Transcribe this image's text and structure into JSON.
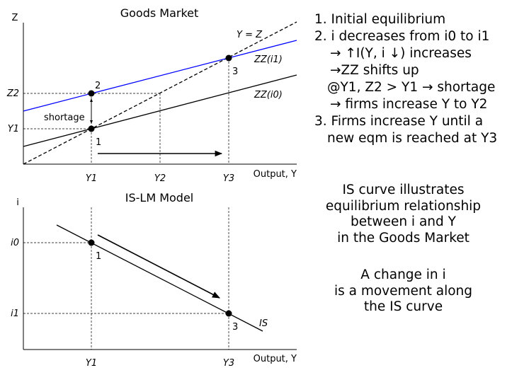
{
  "top": {
    "title": "Goods Market",
    "y_axis_label": "Z",
    "x_axis_label": "Output, Y",
    "x_ticks": [
      "Y1",
      "Y2",
      "Y3"
    ],
    "y_ticks": [
      "Z2",
      "Y1"
    ],
    "labels": {
      "y_equals_z": "Y = Z",
      "zz_i1": "ZZ(i1)",
      "zz_i0": "ZZ(i0)",
      "shortage": "shortage",
      "point_1": "1",
      "point_2": "2",
      "point_3": "3"
    }
  },
  "bottom": {
    "title": "IS-LM Model",
    "y_axis_label": "i",
    "x_axis_label": "Output, Y",
    "x_ticks": [
      "Y1",
      "Y3"
    ],
    "y_ticks": [
      "i0",
      "i1"
    ],
    "labels": {
      "is_curve": "IS",
      "point_1": "1",
      "point_3": "3"
    }
  },
  "notes": {
    "line1": "1. Initial equilibrium",
    "line2": "2. i decreases from i0 to i1",
    "line3": "→ ↑I(Y, i ↓) increases",
    "line4": "→ZZ shifts up",
    "line5": "@Y1, Z2 > Y1 → shortage",
    "line6": "→ firms increase Y to Y2",
    "line7": "3. Firms increase Y until a",
    "line8": "new eqm is reached at Y3"
  },
  "captions": {
    "is_curve": [
      "IS curve illustrates",
      "equilibrium relationship",
      "between i and Y",
      "in the Goods Market"
    ],
    "movement": [
      "A change in i",
      "is a movement along",
      "the IS curve"
    ]
  },
  "colors": {
    "zz_i1_line": "#0000ff",
    "lines": "#000000"
  }
}
